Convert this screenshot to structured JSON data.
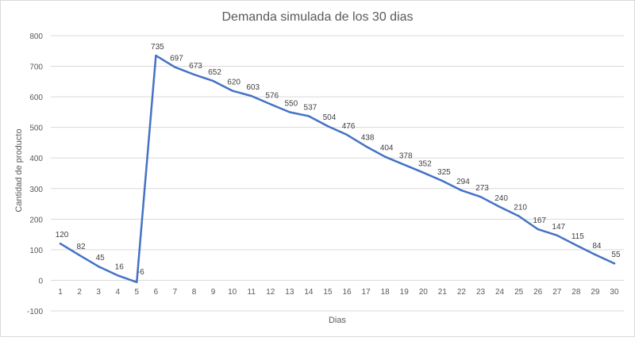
{
  "chart_data": {
    "type": "line",
    "title": "Demanda simulada de los 30 dias",
    "xlabel": "Dias",
    "ylabel": "Cantidad de producto",
    "ylim": [
      -100,
      800
    ],
    "yticks": [
      -100,
      0,
      100,
      200,
      300,
      400,
      500,
      600,
      700,
      800
    ],
    "grid": true,
    "legend": "none",
    "x": [
      1,
      2,
      3,
      4,
      5,
      6,
      7,
      8,
      9,
      10,
      11,
      12,
      13,
      14,
      15,
      16,
      17,
      18,
      19,
      20,
      21,
      22,
      23,
      24,
      25,
      26,
      27,
      28,
      29,
      30
    ],
    "series": [
      {
        "color": "#4472C4",
        "values": [
          120,
          82,
          45,
          16,
          -6,
          735,
          697,
          673,
          652,
          620,
          603,
          576,
          550,
          537,
          504,
          476,
          438,
          404,
          378,
          352,
          325,
          294,
          273,
          240,
          210,
          167,
          147,
          115,
          84,
          55
        ]
      }
    ]
  }
}
